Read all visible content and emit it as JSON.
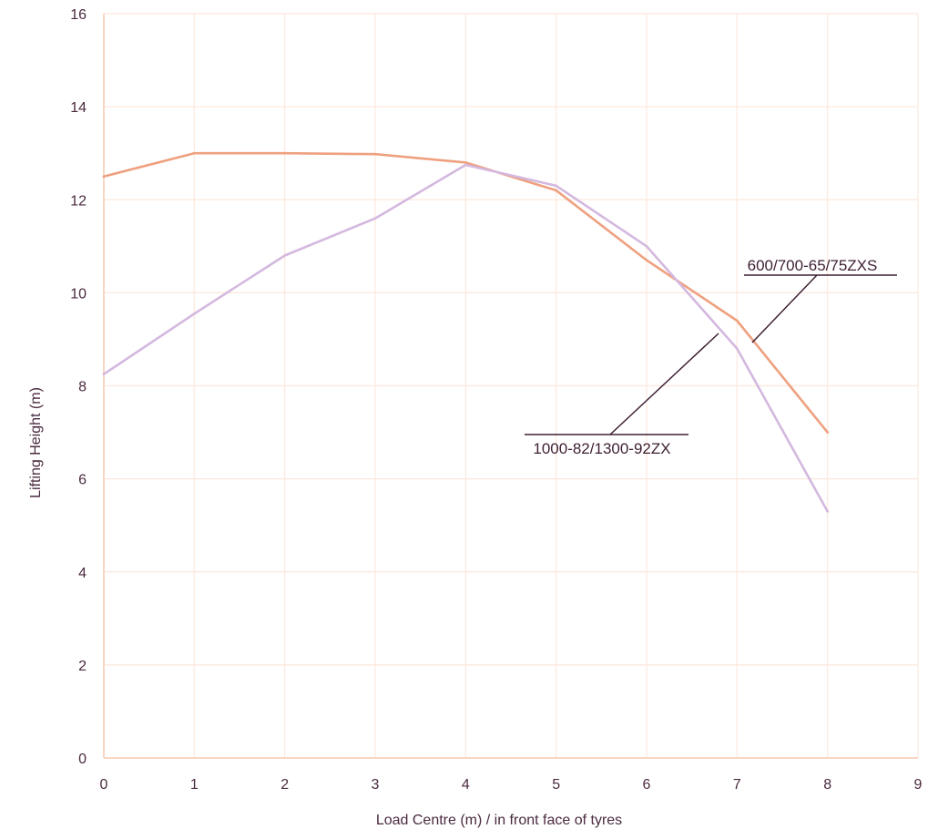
{
  "chart_data": {
    "type": "line",
    "xlabel": "Load Centre (m) / in front face of tyres",
    "ylabel": "Lifting Height (m)",
    "xlim": [
      0,
      9
    ],
    "ylim": [
      0,
      16
    ],
    "x_ticks": [
      "0",
      "1",
      "2",
      "3",
      "4",
      "5",
      "6",
      "7",
      "8",
      "9"
    ],
    "y_ticks": [
      "0",
      "2",
      "4",
      "6",
      "8",
      "10",
      "12",
      "14",
      "16"
    ],
    "grid": true,
    "series": [
      {
        "name": "600/700-65/75ZXS",
        "color": "#eea07f",
        "x": [
          0,
          1,
          2,
          3,
          4,
          5,
          6,
          7,
          8
        ],
        "y": [
          12.5,
          13.0,
          13.0,
          12.98,
          12.8,
          12.2,
          10.7,
          9.4,
          7.0
        ]
      },
      {
        "name": "1000-82/1300-92ZX",
        "color": "#d4b8df",
        "x": [
          0,
          1,
          2,
          3,
          4,
          5,
          6,
          7,
          8
        ],
        "y": [
          8.25,
          9.55,
          10.8,
          11.6,
          12.75,
          12.3,
          11.0,
          8.8,
          5.3
        ]
      }
    ],
    "annotations": [
      "600/700-65/75ZXS",
      "1000-82/1300-92ZX"
    ]
  }
}
